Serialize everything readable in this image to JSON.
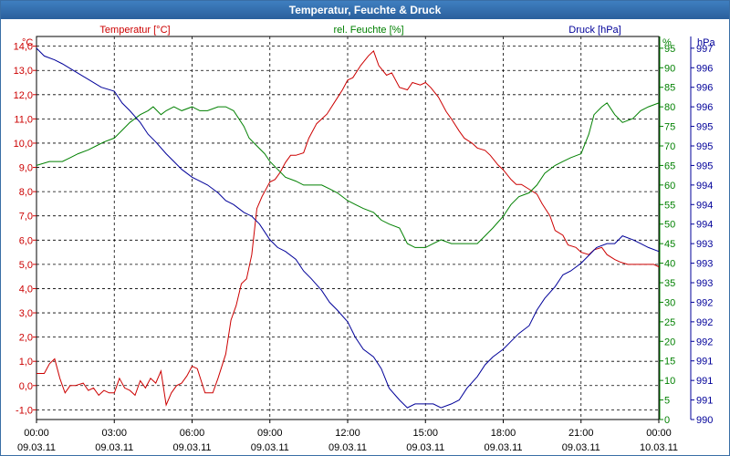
{
  "window": {
    "title": "Temperatur, Feuchte & Druck"
  },
  "colors": {
    "temperature": "#cc0000",
    "humidity": "#008000",
    "pressure": "#000099",
    "title_bar": "#2f6aa8"
  },
  "chart_data": {
    "type": "line",
    "title": "Temperatur, Feuchte & Druck",
    "grid": true,
    "x_ticks": [
      {
        "time": "00:00",
        "date": "09.03.11"
      },
      {
        "time": "03:00",
        "date": "09.03.11"
      },
      {
        "time": "06:00",
        "date": "09.03.11"
      },
      {
        "time": "09:00",
        "date": "09.03.11"
      },
      {
        "time": "12:00",
        "date": "09.03.11"
      },
      {
        "time": "15:00",
        "date": "09.03.11"
      },
      {
        "time": "18:00",
        "date": "09.03.11"
      },
      {
        "time": "21:00",
        "date": "09.03.11"
      },
      {
        "time": "00:00",
        "date": "10.03.11"
      }
    ],
    "x_range_hours": [
      0,
      24
    ],
    "axes": {
      "left": {
        "unit": "°C",
        "range": [
          -1.4,
          14.4
        ],
        "ticks": [
          "-1,0",
          "0,0",
          "1,0",
          "2,0",
          "3,0",
          "4,0",
          "5,0",
          "6,0",
          "7,0",
          "8,0",
          "9,0",
          "10,0",
          "11,0",
          "12,0",
          "13,0",
          "14,0"
        ]
      },
      "right1": {
        "unit": "%",
        "range": [
          0,
          98
        ],
        "ticks": [
          "0",
          "5",
          "10",
          "15",
          "20",
          "25",
          "30",
          "35",
          "40",
          "45",
          "50",
          "55",
          "60",
          "65",
          "70",
          "75",
          "80",
          "85",
          "90",
          "95"
        ]
      },
      "right2": {
        "unit": "hPa",
        "tick_labels": [
          "990",
          "991",
          "991",
          "991",
          "992",
          "992",
          "992",
          "993",
          "993",
          "993",
          "994",
          "994",
          "994",
          "995",
          "995",
          "995",
          "996",
          "996",
          "996",
          "997"
        ]
      }
    },
    "series": [
      {
        "name": "Temperatur [°C]",
        "axis": "left",
        "x": [
          0,
          0.3,
          0.5,
          0.7,
          0.9,
          1.0,
          1.1,
          1.3,
          1.5,
          1.8,
          2.0,
          2.2,
          2.4,
          2.6,
          2.8,
          3.0,
          3.2,
          3.4,
          3.6,
          3.8,
          4.0,
          4.2,
          4.4,
          4.6,
          4.8,
          5.0,
          5.2,
          5.4,
          5.6,
          5.8,
          6.0,
          6.2,
          6.5,
          6.8,
          7.0,
          7.3,
          7.5,
          7.7,
          7.9,
          8.1,
          8.3,
          8.5,
          8.7,
          8.9,
          9.0,
          9.2,
          9.4,
          9.6,
          9.8,
          10.0,
          10.3,
          10.5,
          10.8,
          11.0,
          11.2,
          11.5,
          11.8,
          12.0,
          12.2,
          12.5,
          12.8,
          13.0,
          13.2,
          13.5,
          13.7,
          14.0,
          14.3,
          14.5,
          14.8,
          15.0,
          15.2,
          15.5,
          15.8,
          16.0,
          16.3,
          16.5,
          16.8,
          17.0,
          17.3,
          17.5,
          17.8,
          18.0,
          18.3,
          18.5,
          18.7,
          19.0,
          19.3,
          19.5,
          19.8,
          20.0,
          20.3,
          20.5,
          20.8,
          21.0,
          21.3,
          21.5,
          21.8,
          22.0,
          22.3,
          22.5,
          22.8,
          23.0,
          23.3,
          23.5,
          23.8,
          24.0
        ],
        "values": [
          0.5,
          0.5,
          0.9,
          1.1,
          0.3,
          0.0,
          -0.3,
          0.0,
          0.0,
          0.1,
          -0.2,
          -0.1,
          -0.4,
          -0.2,
          -0.3,
          -0.3,
          0.3,
          -0.1,
          -0.2,
          -0.4,
          0.2,
          -0.1,
          0.3,
          0.1,
          0.6,
          -0.8,
          -0.3,
          0.0,
          0.1,
          0.4,
          0.8,
          0.7,
          -0.3,
          -0.3,
          0.3,
          1.3,
          2.7,
          3.3,
          4.2,
          4.4,
          5.4,
          7.3,
          7.8,
          8.2,
          8.4,
          8.5,
          8.8,
          9.2,
          9.5,
          9.5,
          9.6,
          10.2,
          10.8,
          11.0,
          11.2,
          11.7,
          12.2,
          12.6,
          12.7,
          13.2,
          13.6,
          13.8,
          13.2,
          12.8,
          12.9,
          12.3,
          12.2,
          12.5,
          12.4,
          12.5,
          12.3,
          11.9,
          11.3,
          11.0,
          10.5,
          10.2,
          10.0,
          9.8,
          9.7,
          9.5,
          9.1,
          8.9,
          8.5,
          8.3,
          8.3,
          8.1,
          7.9,
          7.5,
          7.0,
          6.4,
          6.2,
          5.8,
          5.7,
          5.5,
          5.4,
          5.6,
          5.7,
          5.4,
          5.2,
          5.1,
          5.0,
          5.0,
          5.0,
          5.0,
          5.0,
          4.9
        ]
      },
      {
        "name": "rel. Feuchte [%]",
        "axis": "right1",
        "x": [
          0,
          0.5,
          1.0,
          1.3,
          1.6,
          2.0,
          2.3,
          2.6,
          3.0,
          3.3,
          3.6,
          4.0,
          4.3,
          4.5,
          4.8,
          5.0,
          5.3,
          5.6,
          6.0,
          6.3,
          6.6,
          7.0,
          7.3,
          7.6,
          8.0,
          8.2,
          8.5,
          8.8,
          9.0,
          9.3,
          9.6,
          10.0,
          10.3,
          10.6,
          11.0,
          11.3,
          11.6,
          12.0,
          12.3,
          12.6,
          13.0,
          13.3,
          13.6,
          14.0,
          14.3,
          14.6,
          15.0,
          15.3,
          15.6,
          16.0,
          16.3,
          16.6,
          17.0,
          17.3,
          17.6,
          18.0,
          18.3,
          18.6,
          19.0,
          19.3,
          19.6,
          20.0,
          20.3,
          20.6,
          21.0,
          21.3,
          21.5,
          21.8,
          22.0,
          22.3,
          22.6,
          23.0,
          23.3,
          23.6,
          24.0
        ],
        "values": [
          65,
          66,
          66,
          67,
          68,
          69,
          70,
          71,
          72,
          74,
          76,
          78,
          79,
          80,
          78,
          79,
          80,
          79,
          80,
          79,
          79,
          80,
          80,
          79,
          75,
          72,
          70,
          68,
          66,
          64,
          62,
          61,
          60,
          60,
          60,
          59,
          58,
          56,
          55,
          54,
          53,
          51,
          50,
          49,
          45,
          44,
          44,
          45,
          46,
          45,
          45,
          45,
          45,
          47,
          49,
          52,
          55,
          57,
          58,
          60,
          63,
          65,
          66,
          67,
          68,
          73,
          78,
          80,
          81,
          78,
          76,
          77,
          79,
          80,
          81
        ]
      },
      {
        "name": "Druck [hPa]",
        "axis": "right1",
        "x": [
          0,
          0.3,
          0.7,
          1.0,
          1.5,
          2.0,
          2.5,
          3.0,
          3.3,
          3.6,
          4.0,
          4.3,
          4.6,
          5.0,
          5.3,
          5.6,
          6.0,
          6.3,
          6.6,
          7.0,
          7.3,
          7.6,
          8.0,
          8.3,
          8.6,
          8.8,
          9.0,
          9.3,
          9.6,
          10.0,
          10.3,
          10.6,
          11.0,
          11.3,
          11.6,
          12.0,
          12.3,
          12.6,
          13.0,
          13.3,
          13.6,
          14.0,
          14.3,
          14.6,
          15.0,
          15.3,
          15.6,
          16.0,
          16.3,
          16.6,
          17.0,
          17.3,
          17.6,
          18.0,
          18.3,
          18.6,
          19.0,
          19.3,
          19.6,
          20.0,
          20.3,
          20.6,
          21.0,
          21.3,
          21.6,
          22.0,
          22.3,
          22.6,
          23.0,
          23.3,
          23.6,
          24.0
        ],
        "values": [
          95,
          93,
          92,
          91,
          89,
          87,
          85,
          84,
          81,
          79,
          76,
          73,
          71,
          68,
          66,
          64,
          62,
          61,
          60,
          58,
          56,
          55,
          53,
          52,
          50,
          48,
          46,
          44,
          43,
          41,
          38,
          36,
          33,
          30,
          28,
          25,
          21,
          18,
          16,
          13,
          8,
          5,
          3,
          4,
          4,
          4,
          3,
          4,
          5,
          8,
          11,
          14,
          16,
          18,
          20,
          22,
          24,
          28,
          31,
          34,
          37,
          38,
          40,
          42,
          44,
          45,
          45,
          47,
          46,
          45,
          44,
          43
        ]
      }
    ]
  }
}
